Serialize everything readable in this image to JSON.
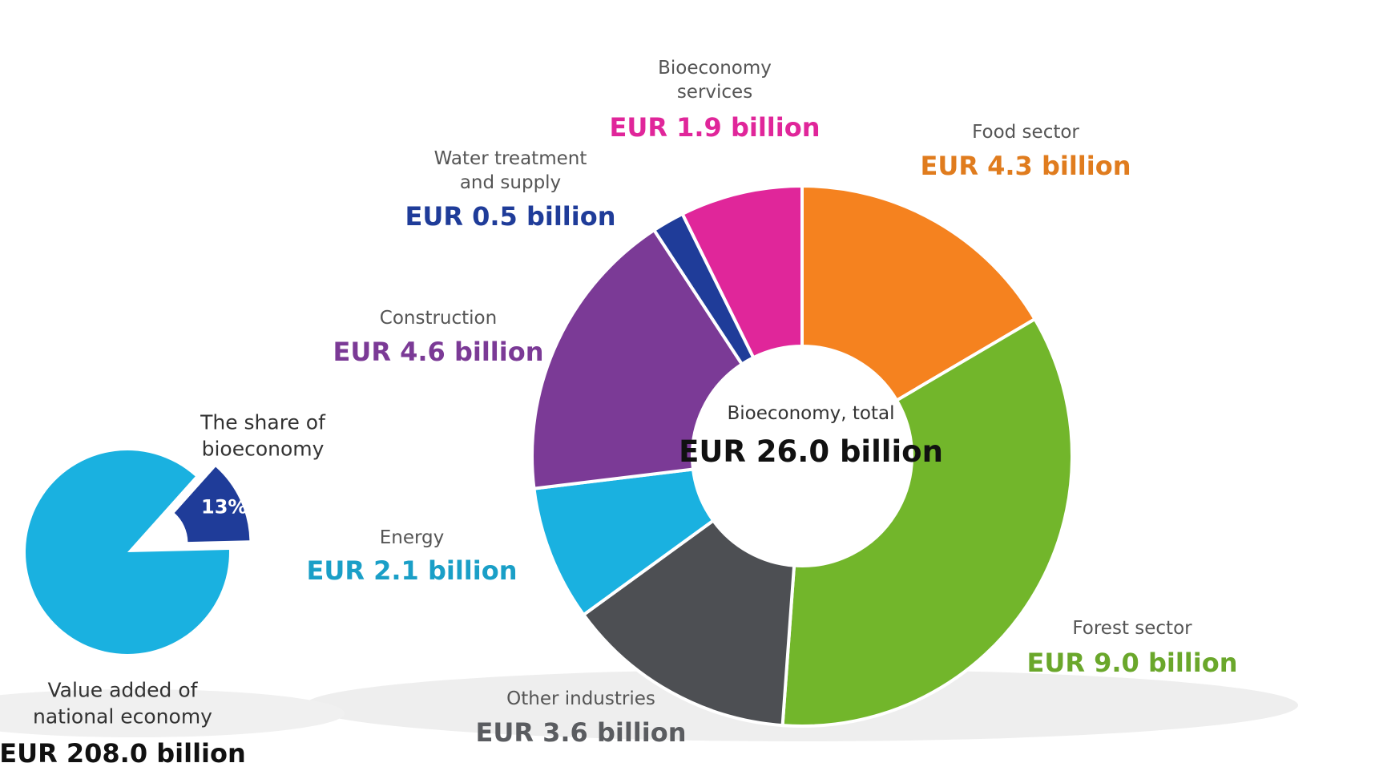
{
  "chart_data": [
    {
      "type": "donut",
      "categories": [
        "Food sector",
        "Forest sector",
        "Other industries",
        "Energy",
        "Construction",
        "Water treatment and supply",
        "Bioeconomy services"
      ],
      "values": [
        4.3,
        9.0,
        3.6,
        2.1,
        4.6,
        0.5,
        1.9
      ],
      "value_labels": [
        "EUR 4.3 billion",
        "EUR 9.0 billion",
        "EUR 3.6 billion",
        "EUR 2.1 billion",
        "EUR 4.6 billion",
        "EUR 0.5 billion",
        "EUR 1.9 billion"
      ],
      "colors": [
        "#f5821f",
        "#72b62b",
        "#4d4f53",
        "#1ab1e0",
        "#7b3a96",
        "#1f3c99",
        "#e0269a"
      ],
      "label_colors": [
        "#e07c1e",
        "#6aa72b",
        "#5a5c60",
        "#1a9fc7",
        "#7b3a96",
        "#1f3c99",
        "#e0269a"
      ],
      "center_title": "Bioeconomy, total",
      "center_label": "EUR 26.0 billion"
    },
    {
      "type": "pie",
      "title": "The share of bioeconomy",
      "categories": [
        null,
        null
      ],
      "values": [
        13,
        87
      ],
      "value_labels": [
        "13%",
        null
      ],
      "colors": [
        "#1f3c99",
        "#1ab1e0"
      ],
      "total_name": "Value added of national economy",
      "total_label": "EUR 208.0 billion"
    }
  ]
}
